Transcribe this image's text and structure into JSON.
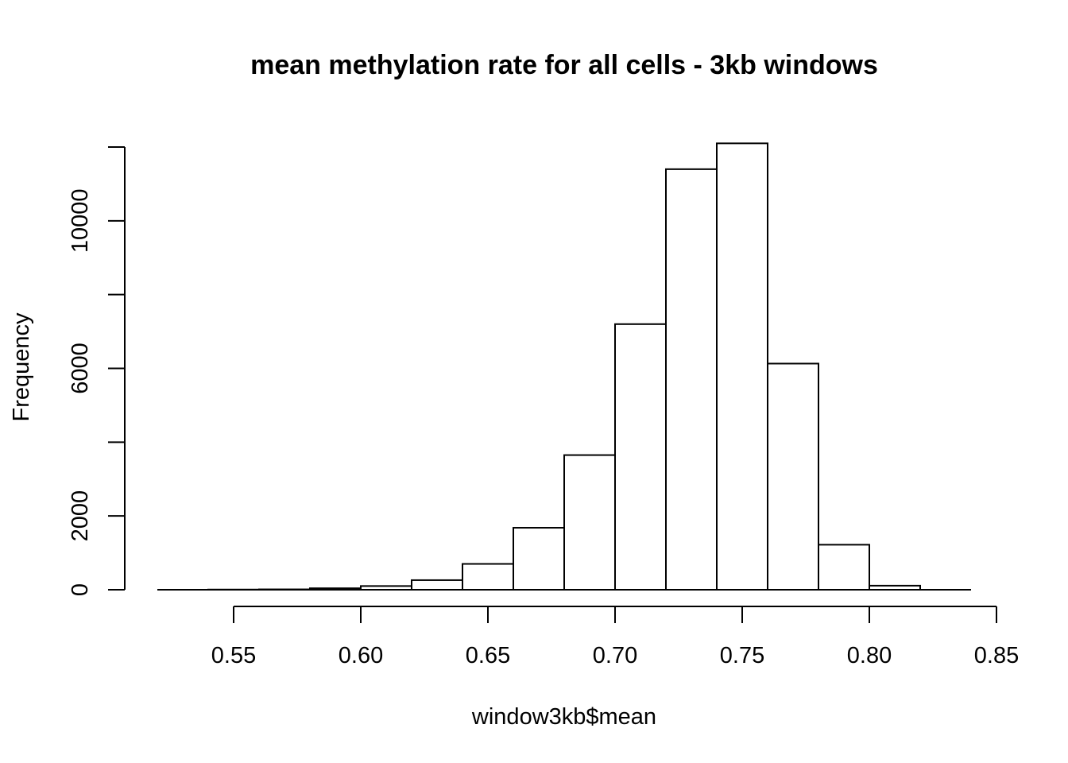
{
  "chart_data": {
    "type": "bar",
    "title": "mean methylation rate for all cells - 3kb windows",
    "xlabel": "window3kb$mean",
    "ylabel": "Frequency",
    "xlim": [
      0.52,
      0.84
    ],
    "ylim": [
      0,
      12100
    ],
    "x_ticks": [
      0.55,
      0.6,
      0.65,
      0.7,
      0.75,
      0.8,
      0.85
    ],
    "x_tick_labels": [
      "0.55",
      "0.60",
      "0.65",
      "0.70",
      "0.75",
      "0.80",
      "0.85"
    ],
    "y_ticks": [
      0,
      2000,
      4000,
      6000,
      8000,
      10000,
      12000
    ],
    "y_tick_labels": [
      "0",
      "2000",
      "",
      "6000",
      "",
      "10000",
      ""
    ],
    "bins": [
      {
        "start": 0.52,
        "end": 0.54,
        "count": 0
      },
      {
        "start": 0.54,
        "end": 0.56,
        "count": 5
      },
      {
        "start": 0.56,
        "end": 0.58,
        "count": 10
      },
      {
        "start": 0.58,
        "end": 0.6,
        "count": 40
      },
      {
        "start": 0.6,
        "end": 0.62,
        "count": 100
      },
      {
        "start": 0.62,
        "end": 0.64,
        "count": 260
      },
      {
        "start": 0.64,
        "end": 0.66,
        "count": 700
      },
      {
        "start": 0.66,
        "end": 0.68,
        "count": 1680
      },
      {
        "start": 0.68,
        "end": 0.7,
        "count": 3650
      },
      {
        "start": 0.7,
        "end": 0.72,
        "count": 7200
      },
      {
        "start": 0.72,
        "end": 0.74,
        "count": 11400
      },
      {
        "start": 0.74,
        "end": 0.76,
        "count": 12100
      },
      {
        "start": 0.76,
        "end": 0.78,
        "count": 6130
      },
      {
        "start": 0.78,
        "end": 0.8,
        "count": 1220
      },
      {
        "start": 0.8,
        "end": 0.82,
        "count": 110
      },
      {
        "start": 0.82,
        "end": 0.84,
        "count": 0
      }
    ],
    "grid": false,
    "legend": "none",
    "bar_fill": "#ffffff",
    "bar_stroke": "#000000"
  }
}
